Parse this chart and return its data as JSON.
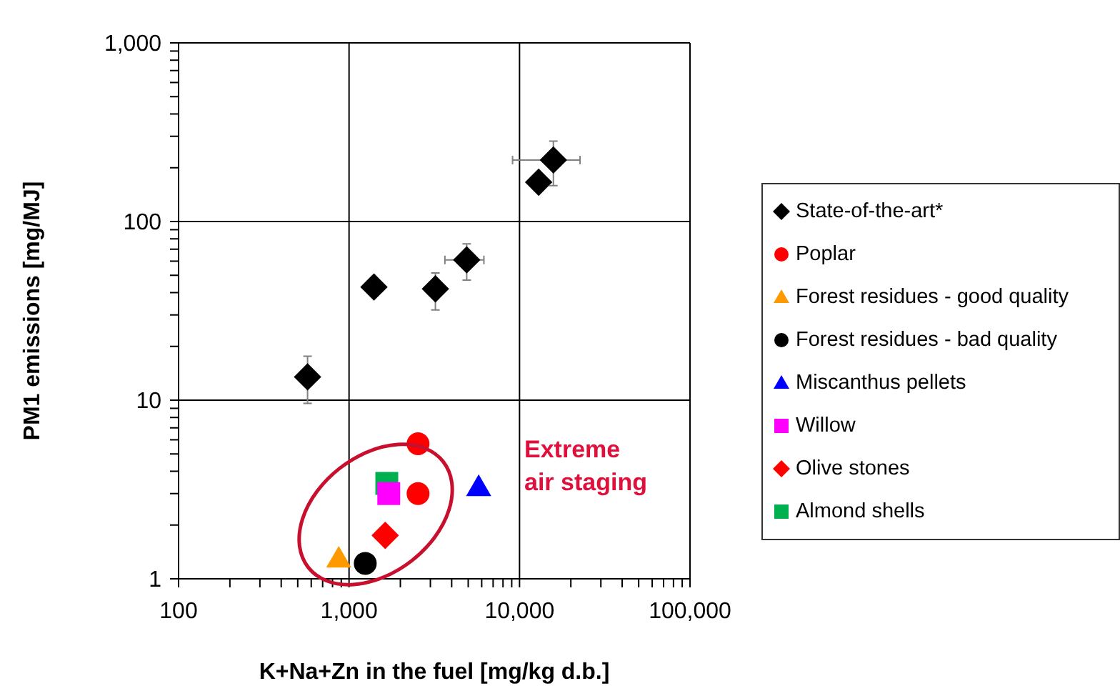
{
  "chart_data": {
    "type": "scatter",
    "xlabel": "K+Na+Zn in the fuel [mg/kg d.b.]",
    "ylabel": "PM1 emissions [mg/MJ]",
    "log": "xy",
    "grid": true,
    "legend": "right",
    "xlim": [
      100,
      100000
    ],
    "ylim": [
      1,
      1000
    ],
    "xticks": [
      100,
      {
        "value": 200,
        "label": null
      },
      {
        "value": 300,
        "label": null
      },
      {
        "value": 400,
        "label": null
      },
      {
        "value": 500,
        "label": null
      },
      {
        "value": 600,
        "label": null
      },
      {
        "value": 700,
        "label": null
      },
      {
        "value": 800,
        "label": null
      },
      {
        "value": 900,
        "label": null
      },
      {
        "value": 1000,
        "label": "1,000"
      },
      {
        "value": 2000,
        "label": null
      },
      {
        "value": 3000,
        "label": null
      },
      {
        "value": 4000,
        "label": null
      },
      {
        "value": 5000,
        "label": null
      },
      {
        "value": 6000,
        "label": null
      },
      {
        "value": 7000,
        "label": null
      },
      {
        "value": 8000,
        "label": null
      },
      {
        "value": 9000,
        "label": null
      },
      {
        "value": 10000,
        "label": "10,000"
      },
      {
        "value": 20000,
        "label": null
      },
      {
        "value": 30000,
        "label": null
      },
      {
        "value": 40000,
        "label": null
      },
      {
        "value": 50000,
        "label": null
      },
      {
        "value": 60000,
        "label": null
      },
      {
        "value": 70000,
        "label": null
      },
      {
        "value": 80000,
        "label": null
      },
      {
        "value": 90000,
        "label": null
      },
      {
        "value": 100000,
        "label": "100,000"
      }
    ],
    "yticks": [
      1,
      {
        "value": 2,
        "label": null
      },
      {
        "value": 3,
        "label": null
      },
      {
        "value": 4,
        "label": null
      },
      {
        "value": 5,
        "label": null
      },
      {
        "value": 6,
        "label": null
      },
      {
        "value": 7,
        "label": null
      },
      {
        "value": 8,
        "label": null
      },
      {
        "value": 9,
        "label": null
      },
      10,
      {
        "value": 20,
        "label": null
      },
      {
        "value": 30,
        "label": null
      },
      {
        "value": 40,
        "label": null
      },
      {
        "value": 50,
        "label": null
      },
      {
        "value": 60,
        "label": null
      },
      {
        "value": 70,
        "label": null
      },
      {
        "value": 80,
        "label": null
      },
      {
        "value": 90,
        "label": null
      },
      100,
      {
        "value": 200,
        "label": null
      },
      {
        "value": 300,
        "label": null
      },
      {
        "value": 400,
        "label": null
      },
      {
        "value": 500,
        "label": null
      },
      {
        "value": 600,
        "label": null
      },
      {
        "value": 700,
        "label": null
      },
      {
        "value": 800,
        "label": null
      },
      {
        "value": 900,
        "label": null
      },
      {
        "value": 1000,
        "label": "1,000"
      }
    ],
    "annotations": [
      "Extreme\nair staging"
    ],
    "series": [
      {
        "name": "State-of-the-art*",
        "color": "#000000",
        "marker": "diamond",
        "x": [
          571,
          1400,
          3210,
          4900,
          12950,
          15800
        ],
        "values": [
          13.5,
          43,
          42,
          61,
          166,
          221
        ],
        "errors": [
          [
            9.6,
            17.6
          ],
          null,
          [
            32,
            51.5
          ],
          [
            47,
            75
          ],
          null,
          [
            159,
            282
          ]
        ],
        "xerrors": [
          null,
          null,
          null,
          [
            3650,
            6180
          ],
          null,
          [
            9100,
            22650
          ]
        ]
      },
      {
        "name": "Poplar",
        "color": "#ff0000",
        "marker": "circle",
        "x": [
          2540,
          2540
        ],
        "values": [
          5.7,
          3.0
        ]
      },
      {
        "name": "Forest residues - good quality",
        "color": "#ff9900",
        "marker": "triangle",
        "x": [
          870
        ],
        "values": [
          1.3
        ]
      },
      {
        "name": "Forest residues - bad quality",
        "color": "#000000",
        "marker": "circle",
        "x": [
          1245
        ],
        "values": [
          1.22
        ]
      },
      {
        "name": "Miscanthus pellets",
        "color": "#0000ff",
        "marker": "triangle",
        "x": [
          5760
        ],
        "values": [
          3.27
        ]
      },
      {
        "name": "Willow",
        "color": "#ff00ff",
        "marker": "square",
        "x": [
          1710
        ],
        "values": [
          3.0
        ]
      },
      {
        "name": "Olive stones",
        "color": "#ff0000",
        "marker": "diamond",
        "x": [
          1630
        ],
        "values": [
          1.75
        ]
      },
      {
        "name": "Almond shells",
        "color": "#00b050",
        "marker": "square",
        "x": [
          1665
        ],
        "values": [
          3.42
        ]
      }
    ]
  }
}
